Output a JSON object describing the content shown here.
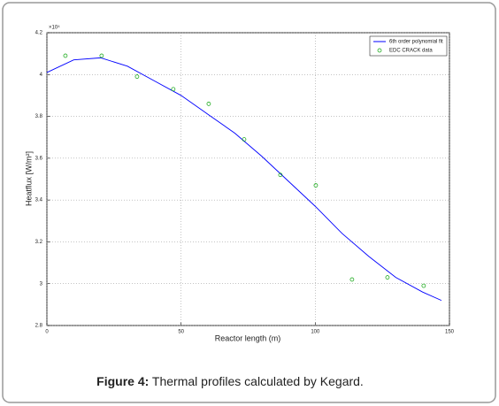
{
  "chart_data": {
    "type": "line",
    "xlabel": "Reactor length (m)",
    "ylabel": "Heatflux [W/m²]",
    "y_multiplier": "×10⁴",
    "xlim": [
      0,
      150
    ],
    "xticks": [
      0,
      50,
      100,
      150
    ],
    "ylim": [
      2.8,
      4.2
    ],
    "yticks": [
      2.8,
      3,
      3.2,
      3.4,
      3.6,
      3.8,
      4,
      4.2
    ],
    "grid": true,
    "legend": "upper right",
    "series": [
      {
        "name": "6th order polynomial fit",
        "color": "#0000ff",
        "type": "line",
        "x": [
          0,
          10,
          20,
          30,
          40,
          50,
          60,
          70,
          80,
          90,
          100,
          110,
          120,
          130,
          140,
          147
        ],
        "values": [
          4.01,
          4.07,
          4.08,
          4.04,
          3.97,
          3.9,
          3.81,
          3.72,
          3.61,
          3.49,
          3.37,
          3.24,
          3.13,
          3.03,
          2.96,
          2.92
        ]
      },
      {
        "name": "EDC CRACK data",
        "color": "#00a000",
        "type": "scatter",
        "x": [
          6.9,
          20.4,
          33.6,
          47.1,
          60.3,
          73.5,
          87.0,
          100.2,
          113.7,
          126.9,
          140.4
        ],
        "values": [
          4.09,
          4.09,
          3.99,
          3.93,
          3.86,
          3.69,
          3.52,
          3.47,
          3.02,
          3.03,
          2.99
        ]
      }
    ]
  },
  "caption": {
    "label": "Figure 4:",
    "text": "Thermal profiles calculated by Kegard."
  }
}
